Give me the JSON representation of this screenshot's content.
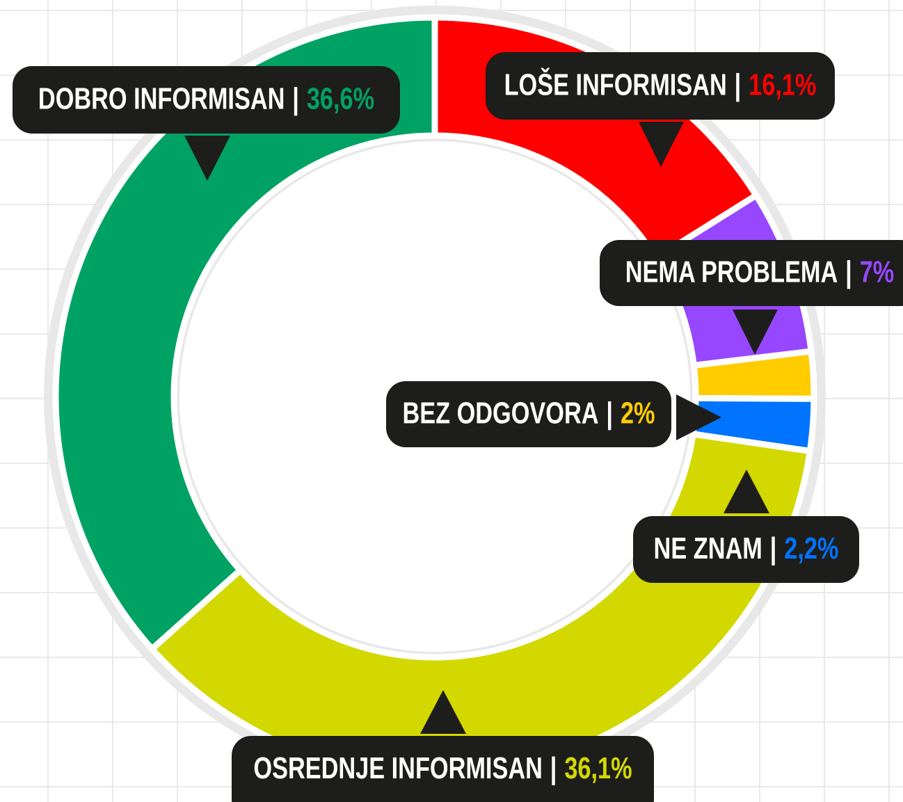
{
  "chart_data": {
    "type": "donut",
    "categories": [
      "LOŠE INFORMISAN",
      "NEMA PROBLEMA",
      "BEZ ODGOVORA",
      "NE ZNAM",
      "OSREDNJE INFORMISAN",
      "DOBRO INFORMISAN"
    ],
    "values": [
      16.1,
      7,
      2,
      2.2,
      36.1,
      36.6
    ],
    "value_labels": [
      "16,1%",
      "7%",
      "2%",
      "2,2%",
      "36,1%",
      "36,6%"
    ],
    "colors": [
      "#ff0000",
      "#9747ff",
      "#ffcc00",
      "#0073ff",
      "#d3d800",
      "#00a264"
    ],
    "separator": "|"
  }
}
